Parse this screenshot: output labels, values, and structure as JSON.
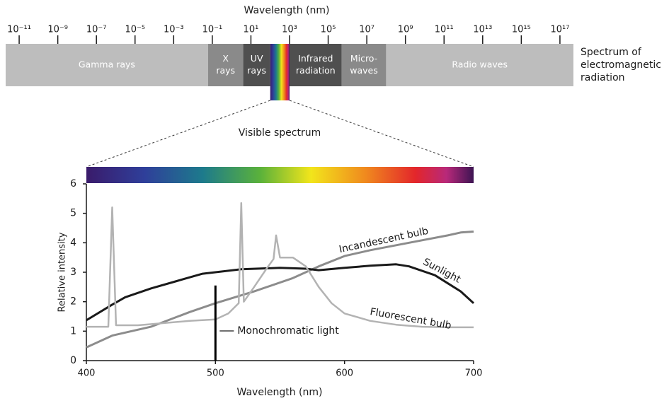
{
  "chart_data": [
    {
      "type": "band",
      "xlabel": "Wavelength (nm)",
      "log_scale": true,
      "xlim": [
        2e-12,
        5e+17
      ],
      "xticks": [
        {
          "value": 1e-11,
          "label": "10⁻¹¹"
        },
        {
          "value": 1e-09,
          "label": "10⁻⁹"
        },
        {
          "value": 1e-07,
          "label": "10⁻⁷"
        },
        {
          "value": 1e-05,
          "label": "10⁻⁵"
        },
        {
          "value": 0.001,
          "label": "10⁻³"
        },
        {
          "value": 0.1,
          "label": "10⁻¹"
        },
        {
          "value": 10,
          "label": "10¹"
        },
        {
          "value": 1000,
          "label": "10³"
        },
        {
          "value": 100000,
          "label": "10⁵"
        },
        {
          "value": 10000000,
          "label": "10⁷"
        },
        {
          "value": 1000000000,
          "label": "10⁹"
        },
        {
          "value": 100000000000,
          "label": "10¹¹"
        },
        {
          "value": 10000000000000,
          "label": "10¹³"
        },
        {
          "value": 1000000000000000,
          "label": "10¹⁵"
        },
        {
          "value": 100000000000000000,
          "label": "10¹⁷"
        }
      ],
      "bands": [
        {
          "label": [
            "Gamma rays"
          ],
          "range": [
            2e-12,
            0.06
          ],
          "color": "#bdbdbd"
        },
        {
          "label": [
            "X",
            "rays"
          ],
          "range": [
            0.06,
            4
          ],
          "color": "#8a8a8a"
        },
        {
          "label": [
            "UV",
            "rays"
          ],
          "range": [
            4,
            100
          ],
          "color": "#4f4f4f"
        },
        {
          "label": [],
          "range": [
            100,
            1000
          ]
        },
        {
          "label": [
            "Infrared",
            "radiation"
          ],
          "range": [
            1000,
            500000
          ],
          "color": "#4f4f4f"
        },
        {
          "label": [
            "Micro-",
            "waves"
          ],
          "range": [
            500000,
            100000000
          ],
          "color": "#8a8a8a"
        },
        {
          "label": [
            "Radio waves"
          ],
          "range": [
            100000000,
            5e+17
          ],
          "color": "#bdbdbd"
        }
      ],
      "side_label": [
        "Spectrum of",
        "electromagnetic",
        "radiation"
      ]
    },
    {
      "type": "line",
      "title": "Visible spectrum",
      "xlabel": "Wavelength (nm)",
      "ylabel": "Relative intensity",
      "xlim": [
        400,
        700
      ],
      "xticks": [
        400,
        500,
        600,
        700
      ],
      "ylim": [
        0,
        6
      ],
      "yticks": [
        0,
        1,
        2,
        3,
        4,
        5,
        6
      ],
      "series": [
        {
          "name": "Incandescent bulb",
          "color": "#8c8c8c",
          "x": [
            400,
            420,
            450,
            480,
            500,
            530,
            560,
            580,
            600,
            620,
            650,
            680,
            690,
            700
          ],
          "values": [
            0.45,
            0.85,
            1.15,
            1.65,
            1.95,
            2.35,
            2.8,
            3.2,
            3.55,
            3.75,
            4.0,
            4.25,
            4.35,
            4.38
          ]
        },
        {
          "name": "Sunlight",
          "color": "#1a1a1a",
          "x": [
            400,
            420,
            430,
            450,
            470,
            490,
            500,
            520,
            550,
            570,
            580,
            600,
            620,
            640,
            650,
            670,
            690,
            700
          ],
          "values": [
            1.37,
            1.9,
            2.15,
            2.45,
            2.7,
            2.95,
            3.0,
            3.1,
            3.15,
            3.12,
            3.07,
            3.15,
            3.22,
            3.27,
            3.2,
            2.9,
            2.35,
            1.95
          ]
        },
        {
          "name": "Fluorescent bulb",
          "color": "#b3b3b3",
          "x": [
            400,
            417,
            420,
            423,
            440,
            480,
            500,
            510,
            518,
            520,
            522,
            530,
            540,
            545,
            547,
            550,
            560,
            570,
            580,
            590,
            600,
            620,
            640,
            660,
            680,
            700
          ],
          "values": [
            1.15,
            1.15,
            5.2,
            1.2,
            1.2,
            1.35,
            1.4,
            1.6,
            1.95,
            5.35,
            2.0,
            2.5,
            3.15,
            3.45,
            4.25,
            3.5,
            3.5,
            3.2,
            2.5,
            1.95,
            1.6,
            1.35,
            1.22,
            1.15,
            1.13,
            1.13
          ]
        }
      ],
      "monochromatic": {
        "name": "Monochromatic light",
        "x": 500,
        "value": 2.55,
        "color": "#000000"
      }
    }
  ]
}
